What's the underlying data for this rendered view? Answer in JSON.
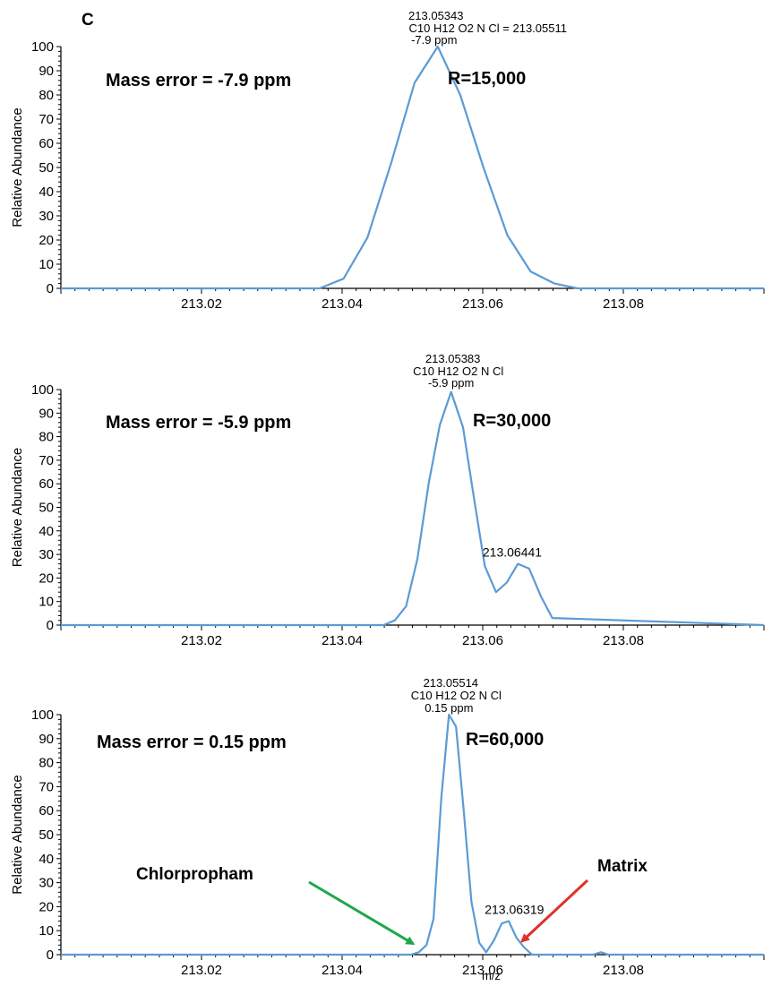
{
  "figure": {
    "panel_letter": "C"
  },
  "colors": {
    "trace": "#5B9BD5",
    "green_arrow": "#1DA84A",
    "red_arrow": "#E0302A",
    "axis": "#000000"
  },
  "chart_data": [
    {
      "type": "line",
      "ylabel": "Relative Abundance",
      "xlabel": "",
      "ylim": [
        0,
        100
      ],
      "xlim": [
        213.0,
        213.1
      ],
      "yticks": [
        "0",
        "10",
        "20",
        "30",
        "40",
        "50",
        "60",
        "70",
        "80",
        "90",
        "100"
      ],
      "xticks": [
        "213.02",
        "213.04",
        "213.06",
        "213.08"
      ],
      "peak_label": {
        "mz": "213.05343",
        "formula": "C10 H12 O2 N Cl = 213.05511",
        "error": "-7.9 ppm"
      },
      "mass_error_text": "Mass error = -7.9 ppm",
      "resolution_text": "R=15,000",
      "series": [
        {
          "x": [
            213.0,
            213.0368,
            213.0402,
            213.0436,
            213.047,
            213.0503,
            213.0536,
            213.0568,
            213.0601,
            213.0635,
            213.0668,
            213.0702,
            213.0735,
            213.1
          ],
          "y": [
            0,
            0,
            4,
            21,
            52,
            85,
            100,
            80,
            50,
            22,
            7,
            2,
            0,
            0
          ]
        }
      ],
      "annotations": []
    },
    {
      "type": "line",
      "ylabel": "Relative Abundance",
      "xlabel": "",
      "ylim": [
        0,
        100
      ],
      "xlim": [
        213.0,
        213.1
      ],
      "yticks": [
        "0",
        "10",
        "20",
        "30",
        "40",
        "50",
        "60",
        "70",
        "80",
        "90",
        "100"
      ],
      "xticks": [
        "213.02",
        "213.04",
        "213.06",
        "213.08"
      ],
      "peak_label": {
        "mz": "213.05383",
        "formula": "C10 H12 O2 N Cl",
        "error": "-5.9 ppm"
      },
      "mass_error_text": "Mass error = -5.9 ppm",
      "resolution_text": "R=30,000",
      "series": [
        {
          "x": [
            213.0,
            213.0459,
            213.0475,
            213.0491,
            213.0507,
            213.0523,
            213.0539,
            213.0555,
            213.0572,
            213.0588,
            213.0603,
            213.0619,
            213.0634,
            213.065,
            213.0666,
            213.0683,
            213.0699,
            213.1
          ],
          "y": [
            0,
            0,
            2,
            8,
            28,
            60,
            85,
            99,
            84,
            53,
            25,
            14,
            18,
            26,
            24,
            12,
            3,
            0
          ]
        }
      ],
      "annotations": [
        {
          "text": "213.06441",
          "x": 213.0642,
          "y": 29
        }
      ]
    },
    {
      "type": "line",
      "ylabel": "Relative Abundance",
      "xlabel": "m/z",
      "ylim": [
        0,
        100
      ],
      "xlim": [
        213.0,
        213.1
      ],
      "yticks": [
        "0",
        "10",
        "20",
        "30",
        "40",
        "50",
        "60",
        "70",
        "80",
        "90",
        "100"
      ],
      "xticks": [
        "213.02",
        "213.04",
        "213.06",
        "213.08"
      ],
      "peak_label": {
        "mz": "213.05514",
        "formula": "C10 H12 O2 N Cl",
        "error": "0.15 ppm"
      },
      "mass_error_text": "Mass error = 0.15 ppm",
      "resolution_text": "R=60,000",
      "series": [
        {
          "x": [
            213.0,
            213.0498,
            213.0509,
            213.052,
            213.053,
            213.0541,
            213.0552,
            213.0562,
            213.0573,
            213.0584,
            213.0595,
            213.0605,
            213.0616,
            213.0627,
            213.0637,
            213.0648,
            213.0659,
            213.067,
            213.0757,
            213.0768,
            213.0779,
            213.1
          ],
          "y": [
            0,
            0,
            1,
            4,
            15,
            65,
            100,
            95,
            60,
            22,
            5,
            1,
            6,
            13,
            14,
            7,
            3,
            0,
            0,
            1,
            0,
            0
          ]
        }
      ],
      "annotations": [
        {
          "text": "213.06319",
          "x": 213.0645,
          "y": 17
        },
        {
          "text": "Chlorpropham",
          "arrow": "green",
          "target_x": 213.0509,
          "target_y": 3
        },
        {
          "text": "Matrix",
          "arrow": "red",
          "target_x": 213.0648,
          "target_y": 4
        }
      ]
    }
  ]
}
